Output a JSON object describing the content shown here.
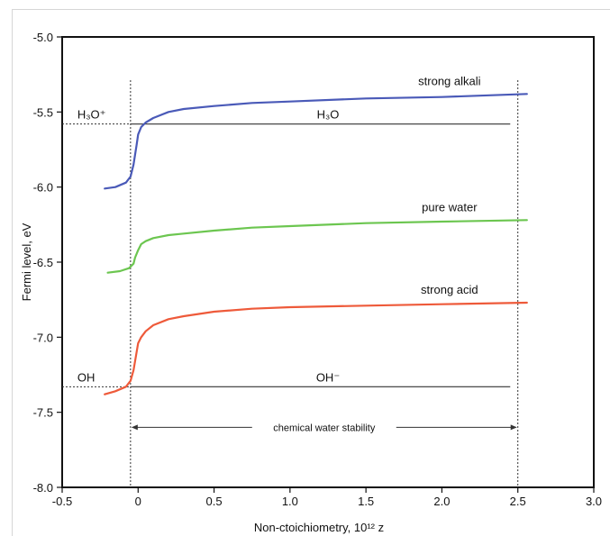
{
  "chart_data": {
    "type": "line",
    "xlabel": "Non-ctoichiometry, 10¹² z",
    "ylabel": "Fermi level, eV",
    "xlim": [
      -0.5,
      3.0
    ],
    "ylim": [
      -8.0,
      -5.0
    ],
    "x_ticks": [
      -0.5,
      0,
      0.5,
      1.0,
      1.5,
      2.0,
      2.5,
      3.0
    ],
    "x_tick_labels": [
      "-0.5",
      "0",
      "0.5",
      "1.0",
      "1.5",
      "2.0",
      "2.5",
      "3.0"
    ],
    "y_ticks": [
      -5.0,
      -5.5,
      -6.0,
      -6.5,
      -7.0,
      -7.5,
      -8.0
    ],
    "y_tick_labels": [
      "-5.0",
      "-5.5",
      "-6.0",
      "-6.5",
      "-7.0",
      "-7.5",
      "-8.0"
    ],
    "grid": false,
    "series": [
      {
        "name": "strong alkali",
        "color": "#4a5ab8",
        "x": [
          -0.22,
          -0.15,
          -0.08,
          -0.05,
          -0.03,
          -0.01,
          0.0,
          0.02,
          0.05,
          0.1,
          0.2,
          0.3,
          0.5,
          0.75,
          1.0,
          1.5,
          2.0,
          2.56
        ],
        "y": [
          -6.01,
          -6.0,
          -5.97,
          -5.93,
          -5.85,
          -5.72,
          -5.65,
          -5.6,
          -5.57,
          -5.54,
          -5.5,
          -5.48,
          -5.46,
          -5.44,
          -5.43,
          -5.41,
          -5.4,
          -5.38
        ]
      },
      {
        "name": "pure water",
        "color": "#6cc650",
        "x": [
          -0.2,
          -0.12,
          -0.06,
          -0.03,
          -0.02,
          0.0,
          0.02,
          0.05,
          0.1,
          0.2,
          0.3,
          0.5,
          0.75,
          1.0,
          1.5,
          2.0,
          2.56
        ],
        "y": [
          -6.57,
          -6.56,
          -6.54,
          -6.51,
          -6.47,
          -6.42,
          -6.38,
          -6.36,
          -6.34,
          -6.32,
          -6.31,
          -6.29,
          -6.27,
          -6.26,
          -6.24,
          -6.23,
          -6.22
        ]
      },
      {
        "name": "strong acid",
        "color": "#ee5a3a",
        "x": [
          -0.22,
          -0.15,
          -0.08,
          -0.05,
          -0.03,
          -0.01,
          0.0,
          0.02,
          0.05,
          0.1,
          0.2,
          0.3,
          0.5,
          0.75,
          1.0,
          1.5,
          2.0,
          2.56
        ],
        "y": [
          -7.38,
          -7.36,
          -7.33,
          -7.29,
          -7.22,
          -7.1,
          -7.04,
          -7.0,
          -6.96,
          -6.92,
          -6.88,
          -6.86,
          -6.83,
          -6.81,
          -6.8,
          -6.79,
          -6.78,
          -6.77
        ]
      }
    ],
    "reference_lines": [
      {
        "label_left": "H₃O⁺",
        "label_mid": "H₃O",
        "y": -5.58,
        "x_start": -0.5,
        "x_end": 2.45
      },
      {
        "label_left": "OH",
        "label_mid": "OH⁻",
        "y": -7.33,
        "x_start": -0.5,
        "x_end": 2.45
      }
    ],
    "vertical_lines": [
      {
        "x": -0.05
      },
      {
        "x": 2.5
      }
    ],
    "range_annotation": {
      "label": "chemical water stability",
      "x_start": -0.05,
      "x_end": 2.5,
      "y": -7.6
    }
  }
}
